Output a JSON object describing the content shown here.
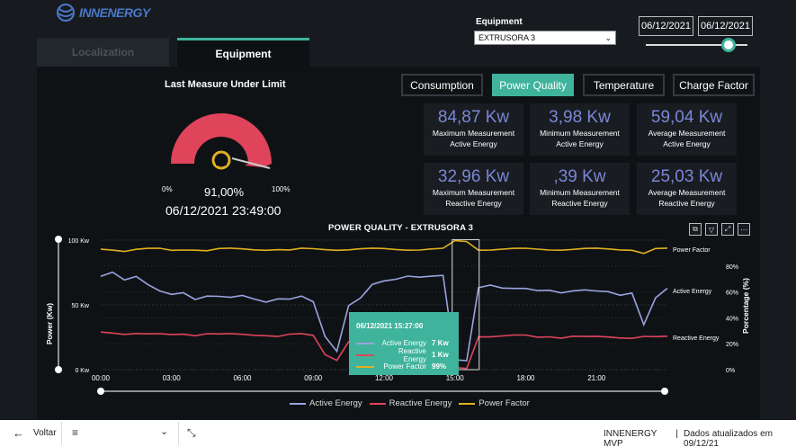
{
  "brand": {
    "logo_text": "INNENERGY"
  },
  "filters": {
    "equipment_label": "Equipment",
    "equipment_value": "EXTRUSORA 3",
    "date_start": "06/12/2021",
    "date_end": "06/12/2021"
  },
  "tabs": [
    {
      "label": "Localization",
      "active": false
    },
    {
      "label": "Equipment",
      "active": true
    }
  ],
  "gauge": {
    "title": "Last Measure Under Limit",
    "min_label": "0%",
    "max_label": "100%",
    "value_label": "91,00%",
    "value": 0.91,
    "datetime": "06/12/2021 23:49:00"
  },
  "metric_buttons": [
    {
      "label": "Consumption",
      "active": false
    },
    {
      "label": "Power Quality",
      "active": true
    },
    {
      "label": "Temperature",
      "active": false
    },
    {
      "label": "Charge Factor",
      "active": false
    }
  ],
  "cards": [
    {
      "value": "84,87 Kw",
      "label1": "Maximum Measurement",
      "label2": "Active Energy"
    },
    {
      "value": "3,98 Kw",
      "label1": "Minimum Measurement",
      "label2": "Active Energy"
    },
    {
      "value": "59,04 Kw",
      "label1": "Average Measurement",
      "label2": "Active Energy"
    },
    {
      "value": "32,96 Kw",
      "label1": "Maximum Measurement",
      "label2": "Reactive Energy"
    },
    {
      "value": ",39 Kw",
      "label1": "Minimum Measurement",
      "label2": "Reactive Energy"
    },
    {
      "value": "25,03 Kw",
      "label1": "Average Measurement",
      "label2": "Reactive Energy"
    }
  ],
  "chart_data": {
    "type": "line",
    "title": "POWER QUALITY - EXTRUSORA 3",
    "xlabel": "",
    "ylabel": "Power (Kw)",
    "y2label": "Porcentage (%)",
    "x_ticks": [
      "00:00",
      "03:00",
      "06:00",
      "09:00",
      "12:00",
      "15:00",
      "18:00",
      "21:00"
    ],
    "y_ticks": [
      "0 Kw",
      "50 Kw",
      "100 Kw"
    ],
    "y2_ticks": [
      "0%",
      "20%",
      "40%",
      "60%",
      "80%"
    ],
    "ylim": [
      0,
      100
    ],
    "y2lim": [
      0,
      100
    ],
    "grid": true,
    "legend_position": "bottom",
    "x_hours": [
      0,
      0.5,
      1,
      1.5,
      2,
      2.5,
      3,
      3.5,
      4,
      4.5,
      5,
      5.5,
      6,
      6.5,
      7,
      7.5,
      8,
      8.5,
      9,
      9.5,
      10,
      10.5,
      11,
      11.5,
      12,
      12.5,
      13,
      13.5,
      14,
      14.5,
      15,
      15.5,
      16,
      16.5,
      17,
      17.5,
      18,
      18.5,
      19,
      19.5,
      20,
      20.5,
      21,
      21.5,
      22,
      22.5,
      23,
      23.5,
      24
    ],
    "series": [
      {
        "name": "Active Energy",
        "color": "#9aa3e0",
        "axis": "left",
        "values": [
          72,
          76,
          70,
          72,
          65,
          60,
          58,
          60,
          55,
          57,
          56,
          55,
          57,
          55,
          53,
          55,
          54,
          56,
          52,
          26,
          15,
          50,
          55,
          65,
          68,
          70,
          73,
          72,
          72,
          72,
          7,
          7,
          64,
          66,
          63,
          62,
          62,
          61,
          62,
          60,
          61,
          61,
          60,
          60,
          58,
          60,
          35,
          55,
          62
        ]
      },
      {
        "name": "Reactive Energy",
        "color": "#e0445a",
        "axis": "left",
        "values": [
          29,
          29,
          28,
          28,
          27,
          27,
          27,
          28,
          27,
          28,
          27,
          27,
          27,
          27,
          27,
          26,
          27,
          27,
          26,
          12,
          8,
          22,
          26,
          27,
          27,
          27,
          28,
          27,
          27,
          27,
          1,
          1,
          26,
          26,
          26,
          26,
          26,
          25,
          26,
          25,
          26,
          25,
          25,
          25,
          25,
          25,
          26,
          25,
          25
        ]
      },
      {
        "name": "Power Factor",
        "color": "#e0b020",
        "axis": "right",
        "values": [
          93,
          93,
          92,
          93,
          93,
          93,
          92,
          93,
          93,
          92,
          93,
          93,
          93,
          93,
          93,
          93,
          92,
          93,
          93,
          93,
          93,
          93,
          93,
          93,
          93,
          93,
          93,
          93,
          93,
          93,
          99,
          99,
          93,
          93,
          93,
          93,
          93,
          93,
          93,
          93,
          93,
          93,
          93,
          93,
          93,
          93,
          90,
          93,
          93
        ]
      }
    ],
    "annotations": [
      "Power Factor",
      "Active Energy",
      "Reactive Energy"
    ]
  },
  "tooltip": {
    "header": "06/12/2021 15:27:00",
    "rows": [
      {
        "name": "Active Energy",
        "value": "7 Kw",
        "color": "#9aa3e0"
      },
      {
        "name": "Reactive Energy",
        "value": "1 Kw",
        "color": "#e0445a"
      },
      {
        "name": "Power Factor",
        "value": "99%",
        "color": "#e0b020"
      }
    ]
  },
  "toolbar_icons": [
    "copy-icon",
    "filter-icon",
    "focus-icon",
    "more-icon"
  ],
  "footer": {
    "back_label": "Voltar",
    "report_name": "INNENERGY MVP",
    "separator": "|",
    "updated_text": "Dados atualizados em 09/12/21"
  }
}
